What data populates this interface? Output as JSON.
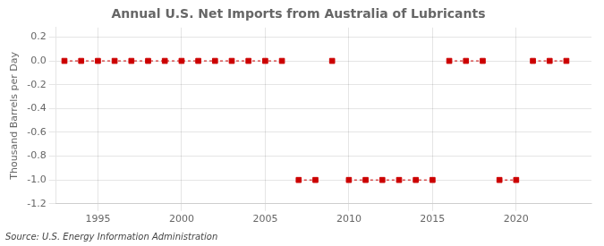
{
  "chart_data": {
    "type": "scatter",
    "title": "Annual U.S. Net Imports from Australia of Lubricants",
    "ylabel": "Thousand Barrels per Day",
    "annotation": "Source: U.S. Energy Information Administration",
    "x": [
      1993,
      1994,
      1995,
      1996,
      1997,
      1998,
      1999,
      2000,
      2001,
      2002,
      2003,
      2004,
      2005,
      2006,
      2007,
      2008,
      2009,
      2010,
      2011,
      2012,
      2013,
      2014,
      2015,
      2016,
      2017,
      2018,
      2019,
      2020,
      2021,
      2022,
      2023
    ],
    "values": [
      0,
      0,
      0,
      0,
      0,
      0,
      0,
      0,
      0,
      0,
      0,
      0,
      0,
      0,
      -1,
      -1,
      0,
      -1,
      -1,
      -1,
      -1,
      -1,
      -1,
      0,
      0,
      0,
      -1,
      -1,
      0,
      0,
      0
    ],
    "color": "#cc0000",
    "marker": "square",
    "line_style": "dashed",
    "xlim": [
      1992.5,
      2024.5
    ],
    "xticks": [
      1995,
      2000,
      2005,
      2010,
      2015,
      2020
    ],
    "ylim": [
      -1.2,
      0.28
    ],
    "yticks": [
      0.2,
      {
        "value": 0,
        "label": "0.0"
      },
      -0.2,
      -0.4,
      -0.6,
      -0.8,
      {
        "value": -1,
        "label": "-1.0"
      },
      -1.2
    ],
    "grid": true
  }
}
